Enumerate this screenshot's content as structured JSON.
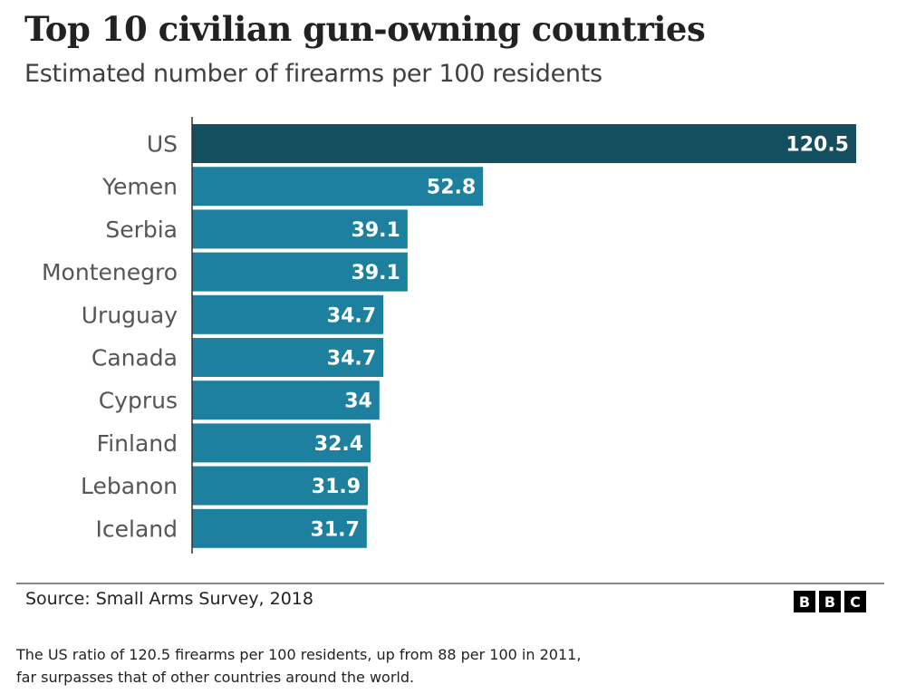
{
  "title": "Top 10 civilian gun-owning countries",
  "subtitle": "Estimated number of firearms per 100 residents",
  "source": "Source: Small Arms Survey, 2018",
  "logo": [
    "B",
    "B",
    "C"
  ],
  "caption_lines": [
    "The US ratio of 120.5 firearms per 100 residents, up from 88 per 100 in 2011,",
    "far surpasses that of other countries around the world."
  ],
  "colors": {
    "highlight": "#144f60",
    "bar": "#1d809f",
    "label": "#555555",
    "value_text": "#ffffff"
  },
  "chart_data": {
    "type": "bar",
    "orientation": "horizontal",
    "title": "Top 10 civilian gun-owning countries",
    "subtitle": "Estimated number of firearms per 100 residents",
    "xlabel": "",
    "ylabel": "",
    "categories": [
      "US",
      "Yemen",
      "Serbia",
      "Montenegro",
      "Uruguay",
      "Canada",
      "Cyprus",
      "Finland",
      "Lebanon",
      "Iceland"
    ],
    "values": [
      120.5,
      52.8,
      39.1,
      39.1,
      34.7,
      34.7,
      34,
      32.4,
      31.9,
      31.7
    ],
    "value_labels": [
      "120.5",
      "52.8",
      "39.1",
      "39.1",
      "34.7",
      "34.7",
      "34",
      "32.4",
      "31.9",
      "31.7"
    ],
    "highlighted": [
      "US"
    ],
    "xlim": [
      0,
      120.5
    ],
    "grid": false,
    "legend": "none"
  }
}
